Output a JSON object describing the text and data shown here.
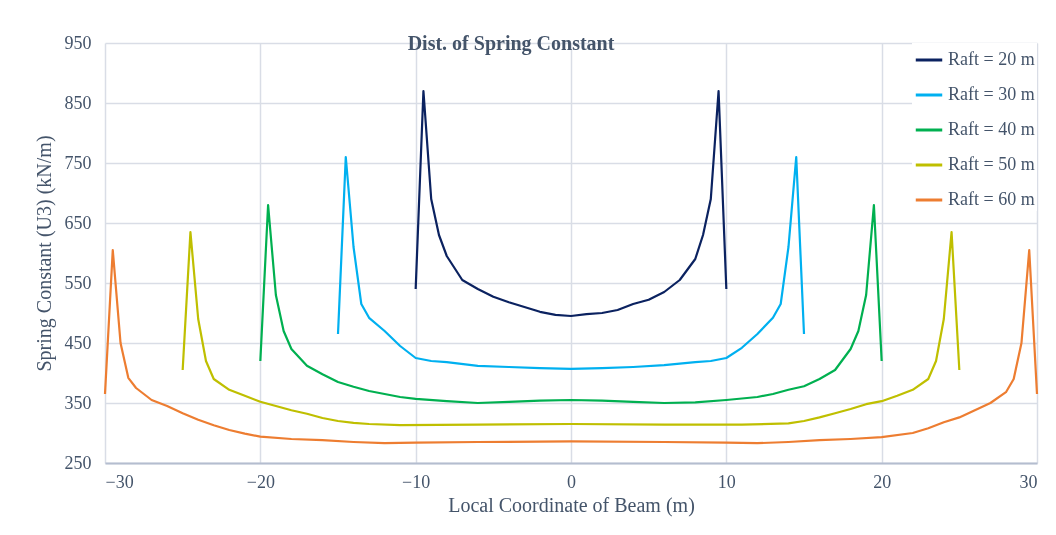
{
  "chart_data": {
    "type": "line",
    "title": "Dist. of Spring Constant",
    "xlabel": "Local Coordinate of Beam (m)",
    "ylabel": "Spring Constant (U3) (kN/m)",
    "xlim": [
      -30,
      30
    ],
    "xticks": [
      -30,
      -20,
      -10,
      0,
      10,
      20,
      30
    ],
    "ylim": [
      250,
      950
    ],
    "yticks": [
      250,
      350,
      450,
      550,
      650,
      750,
      850,
      950
    ],
    "grid": true,
    "legend": "top right",
    "marker": "none",
    "line_style": "solid",
    "series": [
      {
        "name": "Raft = 20 m",
        "color": "#0b2260",
        "x": [
          -10,
          -9.5,
          -9,
          -8.5,
          -8,
          -7,
          -6,
          -5,
          -4,
          -3,
          -2,
          -1,
          0,
          1,
          2,
          3,
          4,
          5,
          6,
          7,
          8,
          8.5,
          9,
          9.5,
          10
        ],
        "values": [
          540,
          870,
          690,
          630,
          595,
          555,
          540,
          527,
          518,
          510,
          502,
          497,
          495,
          498,
          500,
          505,
          515,
          522,
          535,
          555,
          590,
          630,
          690,
          870,
          540
        ]
      },
      {
        "name": "Raft = 30 m",
        "color": "#00b0f0",
        "x": [
          -15,
          -14.5,
          -14,
          -13.5,
          -13,
          -12,
          -11,
          -10,
          -9,
          -8,
          -6,
          -4,
          -2,
          0,
          2,
          4,
          6,
          8,
          9,
          10,
          11,
          12,
          13,
          13.5,
          14,
          14.5,
          15
        ],
        "values": [
          465,
          760,
          610,
          515,
          492,
          470,
          445,
          425,
          420,
          418,
          412,
          410,
          408,
          407,
          408,
          410,
          413,
          418,
          420,
          425,
          442,
          465,
          492,
          515,
          610,
          760,
          465
        ]
      },
      {
        "name": "Raft = 40 m",
        "color": "#00b050",
        "x": [
          -20,
          -19.5,
          -19,
          -18.5,
          -18,
          -17,
          -16,
          -15,
          -14,
          -13,
          -12,
          -11,
          -10,
          -8,
          -6,
          -4,
          -2,
          0,
          2,
          4,
          6,
          8,
          10,
          12,
          13,
          14,
          15,
          16,
          17,
          18,
          18.5,
          19,
          19.5,
          20
        ],
        "values": [
          420,
          680,
          530,
          470,
          440,
          412,
          398,
          385,
          377,
          370,
          365,
          360,
          357,
          353,
          350,
          352,
          354,
          355,
          354,
          352,
          350,
          351,
          355,
          360,
          365,
          372,
          378,
          390,
          405,
          440,
          470,
          530,
          680,
          420
        ]
      },
      {
        "name": "Raft = 50 m",
        "color": "#bfbf00",
        "x": [
          -25,
          -24.5,
          -24,
          -23.5,
          -23,
          -22,
          -21,
          -20,
          -19,
          -18,
          -17,
          -16,
          -15,
          -14,
          -13,
          -11,
          -6,
          0,
          6,
          11,
          14,
          15,
          16,
          17,
          18,
          19,
          20,
          21,
          22,
          23,
          23.5,
          24,
          24.5,
          25
        ],
        "values": [
          405,
          635,
          490,
          420,
          390,
          372,
          362,
          352,
          345,
          338,
          332,
          325,
          320,
          317,
          315,
          313,
          314,
          315,
          314,
          314,
          316,
          320,
          326,
          333,
          340,
          348,
          353,
          362,
          372,
          390,
          420,
          490,
          635,
          405
        ]
      },
      {
        "name": "Raft = 60 m",
        "color": "#ed7d31",
        "x": [
          -30,
          -29.5,
          -29,
          -28.5,
          -28,
          -27,
          -26,
          -25,
          -24,
          -23,
          -22,
          -21,
          -20,
          -18,
          -16,
          -14,
          -12,
          -10,
          -6,
          0,
          6,
          10,
          12,
          14,
          16,
          18,
          20,
          22,
          23,
          24,
          25,
          26,
          27,
          28,
          28.5,
          29,
          29.5,
          30
        ],
        "values": [
          365,
          605,
          450,
          392,
          375,
          355,
          345,
          333,
          322,
          313,
          305,
          299,
          294,
          290,
          288,
          285,
          283,
          284,
          285,
          286,
          285,
          284,
          283,
          285,
          288,
          290,
          293,
          300,
          308,
          318,
          326,
          338,
          350,
          368,
          390,
          450,
          605,
          365
        ]
      }
    ]
  }
}
